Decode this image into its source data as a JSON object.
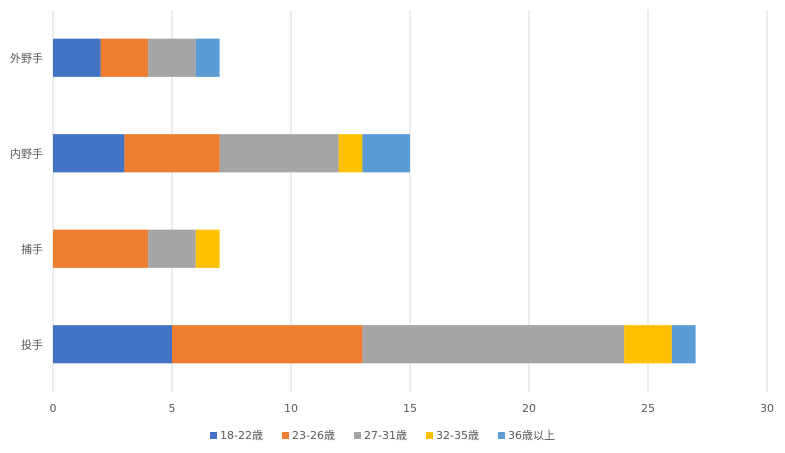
{
  "chart_data": {
    "type": "bar",
    "orientation": "horizontal",
    "stacked": true,
    "categories": [
      "投手",
      "捕手",
      "内野手",
      "外野手"
    ],
    "series": [
      {
        "name": "18-22歳",
        "color": "#4472C4",
        "values": [
          5,
          0,
          3,
          2
        ]
      },
      {
        "name": "23-26歳",
        "color": "#ED7D31",
        "values": [
          8,
          4,
          4,
          2
        ]
      },
      {
        "name": "27-31歳",
        "color": "#A5A5A5",
        "values": [
          11,
          2,
          5,
          2
        ]
      },
      {
        "name": "32-35歳",
        "color": "#FFC000",
        "values": [
          2,
          1,
          1,
          0
        ]
      },
      {
        "name": "36歳以上",
        "color": "#5B9BD5",
        "values": [
          1,
          0,
          2,
          1
        ]
      }
    ],
    "xlim": [
      0,
      30
    ],
    "xticks": [
      0,
      5,
      10,
      15,
      20,
      25,
      30
    ],
    "grid": true,
    "legend_position": "bottom",
    "title": "",
    "xlabel": "",
    "ylabel": ""
  }
}
